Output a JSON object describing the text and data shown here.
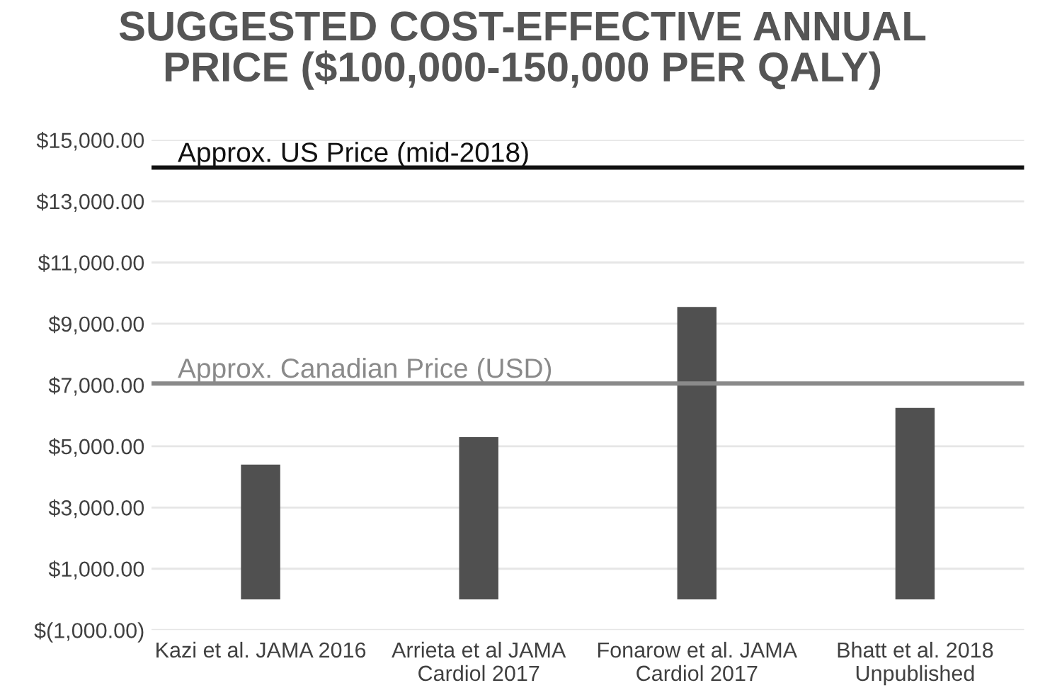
{
  "chart_data": {
    "type": "bar",
    "title": "SUGGESTED COST-EFFECTIVE ANNUAL\nPRICE ($100,000-150,000 PER QALY)",
    "categories": [
      "Kazi et al. JAMA 2016",
      "Arrieta et al JAMA\nCardiol 2017",
      "Fonarow et al. JAMA\nCardiol 2017",
      "Bhatt et al. 2018\nUnpublished"
    ],
    "values": [
      4400,
      5300,
      9550,
      6250
    ],
    "color": "#505050",
    "ylim": [
      -1000,
      15000
    ],
    "yticks": [
      {
        "value": -1000,
        "label": "$(1,000.00)"
      },
      {
        "value": 1000,
        "label": "$1,000.00"
      },
      {
        "value": 3000,
        "label": "$3,000.00"
      },
      {
        "value": 5000,
        "label": "$5,000.00"
      },
      {
        "value": 7000,
        "label": "$7,000.00"
      },
      {
        "value": 9000,
        "label": "$9,000.00"
      },
      {
        "value": 11000,
        "label": "$11,000.00"
      },
      {
        "value": 13000,
        "label": "$13,000.00"
      },
      {
        "value": 15000,
        "label": "$15,000.00"
      }
    ],
    "grid": "y",
    "ref_lines": [
      {
        "axis": "y",
        "value": 14100,
        "label": "Approx. US Price (mid-2018)",
        "color": "#111111"
      },
      {
        "axis": "y",
        "value": 7050,
        "label": "Approx. Canadian Price (USD)",
        "color": "#8a8a8a"
      }
    ]
  }
}
